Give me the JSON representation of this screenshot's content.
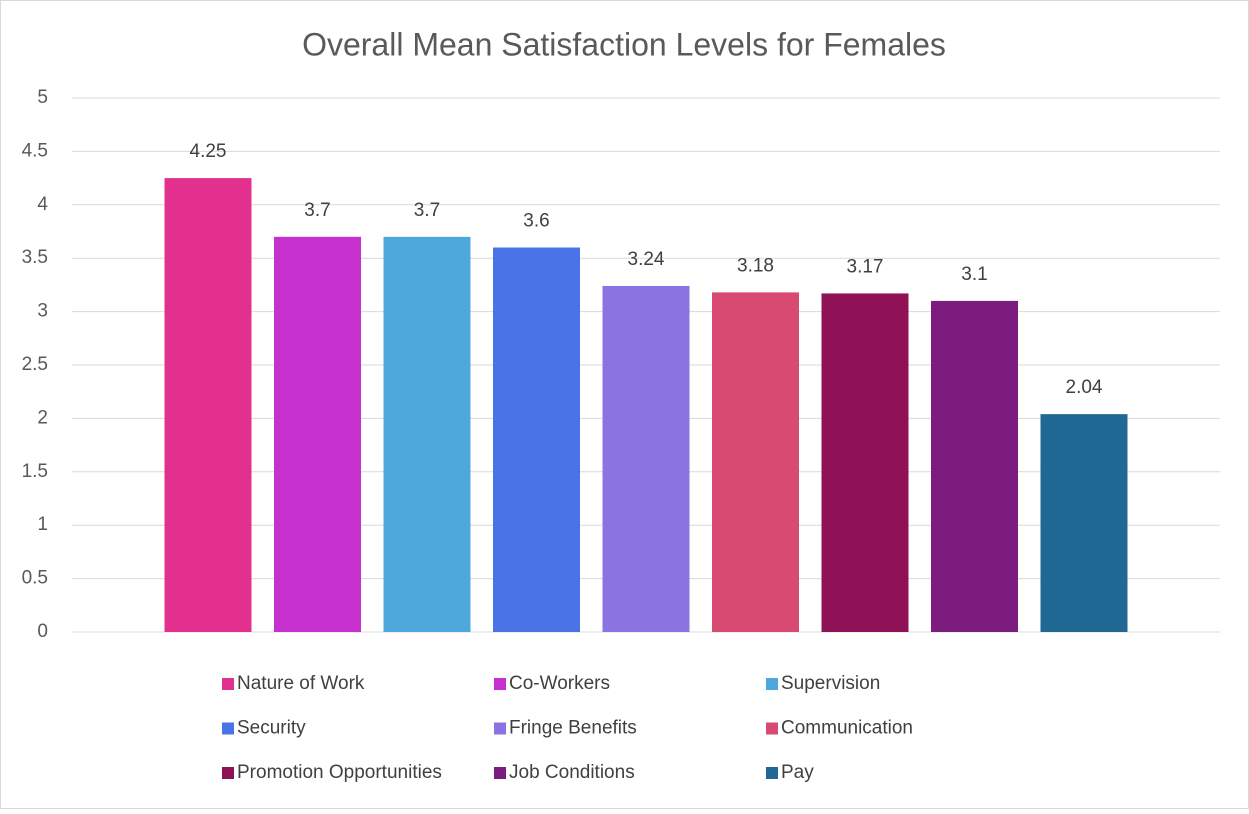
{
  "chart_data": {
    "type": "bar",
    "title": "Overall Mean Satisfaction Levels for Females",
    "series": [
      {
        "name": "Nature of Work",
        "color": "#E3308F",
        "values": [
          4.25
        ]
      },
      {
        "name": "Co-Workers",
        "color": "#C530CF",
        "values": [
          3.7
        ]
      },
      {
        "name": "Supervision",
        "color": "#4FA8DC",
        "values": [
          3.7
        ]
      },
      {
        "name": "Security",
        "color": "#4A74E6",
        "values": [
          3.6
        ]
      },
      {
        "name": "Fringe Benefits",
        "color": "#8C73E2",
        "values": [
          3.24
        ]
      },
      {
        "name": "Communication",
        "color": "#D84A72",
        "values": [
          3.18
        ]
      },
      {
        "name": "Promotion Opportunities",
        "color": "#8F1257",
        "values": [
          3.17
        ]
      },
      {
        "name": "Job Conditions",
        "color": "#7C1C7E",
        "values": [
          3.1
        ]
      },
      {
        "name": "Pay",
        "color": "#1F6894",
        "values": [
          2.04
        ]
      }
    ],
    "ylim": [
      0,
      5
    ],
    "yticks": [
      0,
      0.5,
      1,
      1.5,
      2,
      2.5,
      3,
      3.5,
      4,
      4.5,
      5
    ],
    "grid": true,
    "legend": "bottom"
  }
}
